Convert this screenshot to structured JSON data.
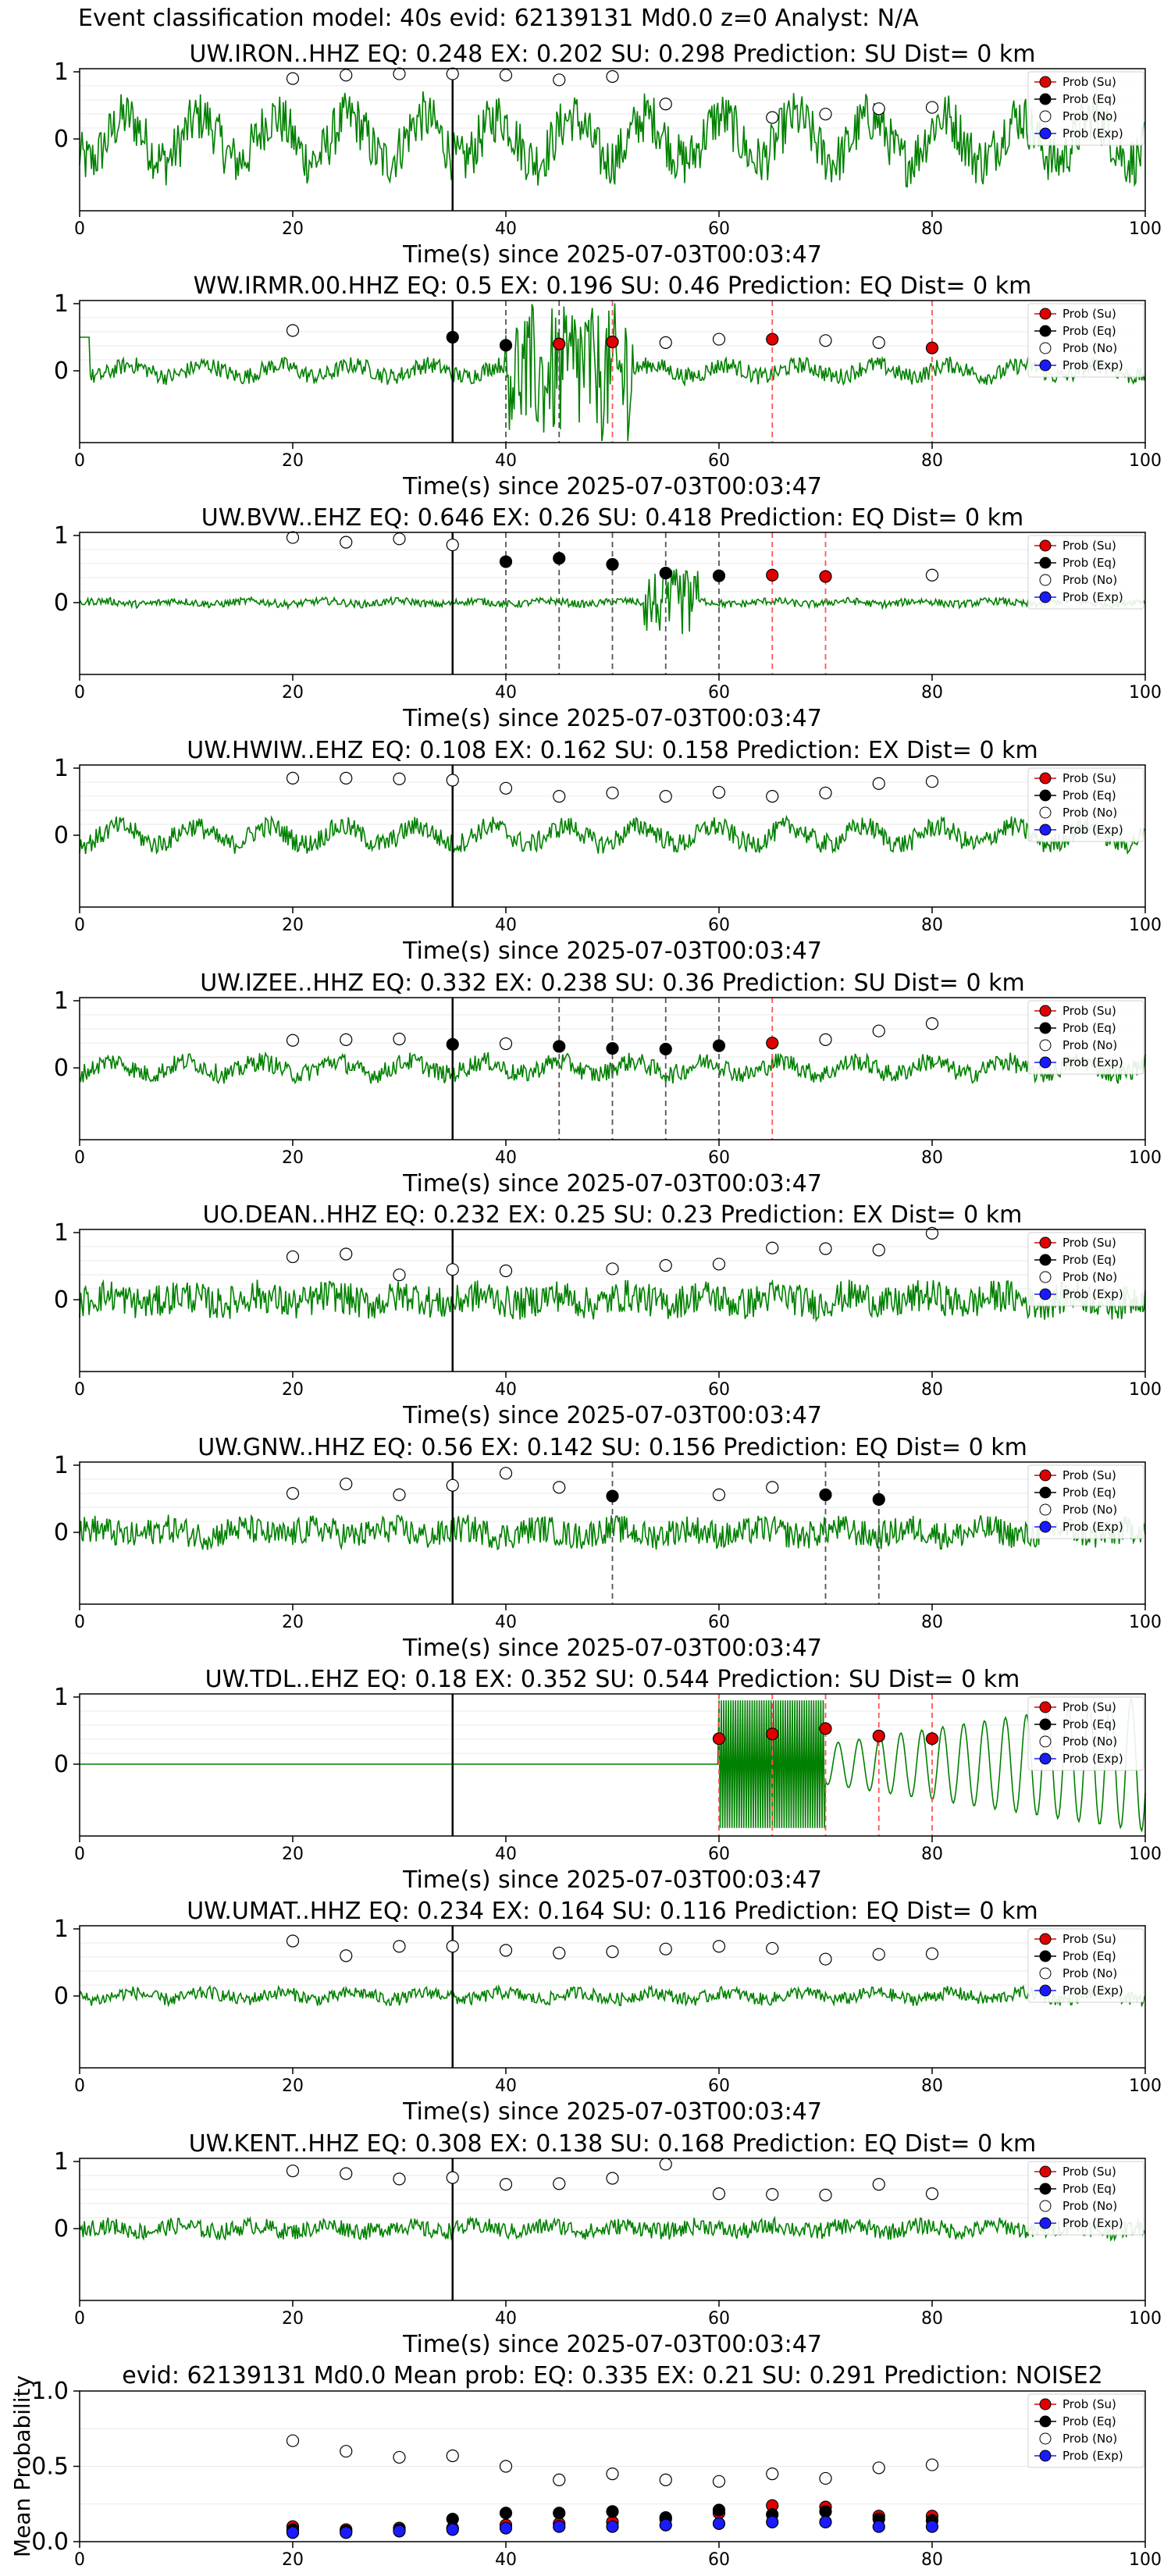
{
  "figure": {
    "title": "Event classification model: 40s evid: 62139131 Md0.0 z=0 Analyst: N/A",
    "legend_labels": [
      "Prob (Su)",
      "Prob (Eq)",
      "Prob (No)",
      "Prob (Exp)"
    ],
    "xlabel_station": "Time(s) since 2025-07-03T00:03:47",
    "colors": {
      "su": "#e00000",
      "eq": "#000000",
      "no": "#ffffff",
      "exp": "#1a1aff",
      "trace": "#008000"
    }
  },
  "chart_data": [
    {
      "type": "line",
      "title": "UW.IRON..HHZ   EQ: 0.248  EX: 0.202  SU: 0.298   Prediction: SU    Dist= 0 km",
      "xlim": [
        0,
        100
      ],
      "xticks": [
        0,
        20,
        40,
        60,
        80,
        100
      ],
      "yticks": [
        0,
        1
      ],
      "vline": 35,
      "eq_lines": [],
      "su_lines": [],
      "su_pts": [],
      "eq_pts": [],
      "no_pts": [
        [
          20,
          0.9
        ],
        [
          25,
          0.95
        ],
        [
          30,
          0.97
        ],
        [
          35,
          0.97
        ],
        [
          40,
          0.95
        ],
        [
          45,
          0.88
        ],
        [
          50,
          0.93
        ],
        [
          55,
          0.52
        ],
        [
          65,
          0.32
        ],
        [
          70,
          0.37
        ],
        [
          75,
          0.45
        ],
        [
          80,
          0.47
        ]
      ]
    },
    {
      "type": "line",
      "title": "WW.IRMR.00.HHZ   EQ: 0.5  EX: 0.196  SU: 0.46   Prediction: EQ    Dist= 0 km",
      "xlim": [
        0,
        100
      ],
      "xticks": [
        0,
        20,
        40,
        60,
        80,
        100
      ],
      "yticks": [
        0,
        1
      ],
      "vline": 35,
      "eq_lines": [
        40,
        45
      ],
      "su_lines": [
        50,
        65,
        80
      ],
      "su_pts": [
        [
          45,
          0.4
        ],
        [
          50,
          0.43
        ],
        [
          65,
          0.47
        ],
        [
          80,
          0.34
        ]
      ],
      "eq_pts": [
        [
          35,
          0.5
        ],
        [
          40,
          0.38
        ]
      ],
      "no_pts": [
        [
          20,
          0.6
        ],
        [
          55,
          0.42
        ],
        [
          60,
          0.47
        ],
        [
          70,
          0.45
        ],
        [
          75,
          0.42
        ]
      ]
    },
    {
      "type": "line",
      "title": "UW.BVW..EHZ   EQ: 0.646  EX: 0.26  SU: 0.418   Prediction: EQ    Dist= 0 km",
      "xlim": [
        0,
        100
      ],
      "xticks": [
        0,
        20,
        40,
        60,
        80,
        100
      ],
      "yticks": [
        0,
        1
      ],
      "vline": 35,
      "eq_lines": [
        40,
        45,
        50,
        55,
        60
      ],
      "su_lines": [
        65,
        70
      ],
      "su_pts": [
        [
          65,
          0.41
        ],
        [
          70,
          0.39
        ]
      ],
      "eq_pts": [
        [
          40,
          0.61
        ],
        [
          45,
          0.66
        ],
        [
          50,
          0.57
        ],
        [
          55,
          0.44
        ],
        [
          60,
          0.4
        ]
      ],
      "no_pts": [
        [
          20,
          0.97
        ],
        [
          25,
          0.9
        ],
        [
          30,
          0.95
        ],
        [
          35,
          0.86
        ],
        [
          80,
          0.41
        ]
      ]
    },
    {
      "type": "line",
      "title": "UW.HWIW..EHZ   EQ: 0.108  EX: 0.162  SU: 0.158   Prediction: EX    Dist= 0 km",
      "xlim": [
        0,
        100
      ],
      "xticks": [
        0,
        20,
        40,
        60,
        80,
        100
      ],
      "yticks": [
        0,
        1
      ],
      "vline": 35,
      "eq_lines": [],
      "su_lines": [],
      "su_pts": [],
      "eq_pts": [],
      "no_pts": [
        [
          20,
          0.85
        ],
        [
          25,
          0.85
        ],
        [
          30,
          0.84
        ],
        [
          35,
          0.82
        ],
        [
          40,
          0.7
        ],
        [
          45,
          0.58
        ],
        [
          50,
          0.63
        ],
        [
          55,
          0.58
        ],
        [
          60,
          0.64
        ],
        [
          65,
          0.58
        ],
        [
          70,
          0.63
        ],
        [
          75,
          0.77
        ],
        [
          80,
          0.8
        ]
      ]
    },
    {
      "type": "line",
      "title": "UW.IZEE..HHZ   EQ: 0.332  EX: 0.238  SU: 0.36   Prediction: SU    Dist= 0 km",
      "xlim": [
        0,
        100
      ],
      "xticks": [
        0,
        20,
        40,
        60,
        80,
        100
      ],
      "yticks": [
        0,
        1
      ],
      "vline": 35,
      "eq_lines": [
        45,
        50,
        55,
        60
      ],
      "su_lines": [
        65
      ],
      "su_pts": [
        [
          65,
          0.37
        ]
      ],
      "eq_pts": [
        [
          35,
          0.35
        ],
        [
          45,
          0.32
        ],
        [
          50,
          0.29
        ],
        [
          55,
          0.28
        ],
        [
          60,
          0.33
        ]
      ],
      "no_pts": [
        [
          20,
          0.41
        ],
        [
          25,
          0.42
        ],
        [
          30,
          0.43
        ],
        [
          40,
          0.36
        ],
        [
          70,
          0.42
        ],
        [
          75,
          0.55
        ],
        [
          80,
          0.66
        ]
      ]
    },
    {
      "type": "line",
      "title": "UO.DEAN..HHZ   EQ: 0.232  EX: 0.25  SU: 0.23   Prediction: EX    Dist= 0 km",
      "xlim": [
        0,
        100
      ],
      "xticks": [
        0,
        20,
        40,
        60,
        80,
        100
      ],
      "yticks": [
        0,
        1
      ],
      "vline": 35,
      "eq_lines": [],
      "su_lines": [],
      "su_pts": [],
      "eq_pts": [],
      "no_pts": [
        [
          20,
          0.64
        ],
        [
          25,
          0.68
        ],
        [
          30,
          0.37
        ],
        [
          35,
          0.45
        ],
        [
          40,
          0.43
        ],
        [
          50,
          0.46
        ],
        [
          55,
          0.51
        ],
        [
          60,
          0.53
        ],
        [
          65,
          0.77
        ],
        [
          70,
          0.76
        ],
        [
          75,
          0.74
        ],
        [
          80,
          0.99
        ]
      ]
    },
    {
      "type": "line",
      "title": "UW.GNW..HHZ   EQ: 0.56  EX: 0.142  SU: 0.156   Prediction: EQ    Dist= 0 km",
      "xlim": [
        0,
        100
      ],
      "xticks": [
        0,
        20,
        40,
        60,
        80,
        100
      ],
      "yticks": [
        0,
        1
      ],
      "vline": 35,
      "eq_lines": [
        50,
        70,
        75
      ],
      "su_lines": [],
      "su_pts": [],
      "eq_pts": [
        [
          50,
          0.54
        ],
        [
          70,
          0.56
        ],
        [
          75,
          0.49
        ]
      ],
      "no_pts": [
        [
          20,
          0.58
        ],
        [
          25,
          0.72
        ],
        [
          30,
          0.56
        ],
        [
          35,
          0.7
        ],
        [
          40,
          0.88
        ],
        [
          45,
          0.67
        ],
        [
          60,
          0.56
        ],
        [
          65,
          0.67
        ]
      ]
    },
    {
      "type": "line",
      "title": "UW.TDL..EHZ   EQ: 0.18  EX: 0.352  SU: 0.544   Prediction: SU    Dist= 0 km",
      "xlim": [
        0,
        100
      ],
      "xticks": [
        0,
        20,
        40,
        60,
        80,
        100
      ],
      "yticks": [
        0,
        1
      ],
      "vline": 35,
      "eq_lines": [],
      "su_lines": [
        60,
        65,
        70,
        75,
        80
      ],
      "su_pts": [
        [
          60,
          0.38
        ],
        [
          65,
          0.45
        ],
        [
          70,
          0.53
        ],
        [
          75,
          0.42
        ],
        [
          80,
          0.38
        ]
      ],
      "eq_pts": [],
      "no_pts": []
    },
    {
      "type": "line",
      "title": "UW.UMAT..HHZ   EQ: 0.234  EX: 0.164  SU: 0.116   Prediction: EQ    Dist= 0 km",
      "xlim": [
        0,
        100
      ],
      "xticks": [
        0,
        20,
        40,
        60,
        80,
        100
      ],
      "yticks": [
        0,
        1
      ],
      "vline": 35,
      "eq_lines": [],
      "su_lines": [],
      "su_pts": [],
      "eq_pts": [],
      "no_pts": [
        [
          20,
          0.82
        ],
        [
          25,
          0.6
        ],
        [
          30,
          0.74
        ],
        [
          35,
          0.74
        ],
        [
          40,
          0.68
        ],
        [
          45,
          0.64
        ],
        [
          50,
          0.66
        ],
        [
          55,
          0.7
        ],
        [
          60,
          0.74
        ],
        [
          65,
          0.71
        ],
        [
          70,
          0.55
        ],
        [
          75,
          0.62
        ],
        [
          80,
          0.63
        ]
      ]
    },
    {
      "type": "line",
      "title": "UW.KENT..HHZ   EQ: 0.308  EX: 0.138  SU: 0.168   Prediction: EQ    Dist= 0 km",
      "xlim": [
        0,
        100
      ],
      "xticks": [
        0,
        20,
        40,
        60,
        80,
        100
      ],
      "yticks": [
        0,
        1
      ],
      "vline": 35,
      "eq_lines": [],
      "su_lines": [],
      "su_pts": [],
      "eq_pts": [],
      "no_pts": [
        [
          20,
          0.86
        ],
        [
          25,
          0.82
        ],
        [
          30,
          0.74
        ],
        [
          35,
          0.76
        ],
        [
          40,
          0.66
        ],
        [
          45,
          0.67
        ],
        [
          50,
          0.75
        ],
        [
          55,
          0.96
        ],
        [
          60,
          0.52
        ],
        [
          65,
          0.51
        ],
        [
          70,
          0.5
        ],
        [
          75,
          0.66
        ],
        [
          80,
          0.52
        ]
      ]
    },
    {
      "type": "scatter",
      "title": "evid: 62139131  Md0.0   Mean prob:   EQ: 0.335  EX: 0.21  SU: 0.291   Prediction: NOISE2",
      "ylabel": "Mean Probability",
      "xlim": [
        0,
        100
      ],
      "ylim": [
        0,
        1
      ],
      "xticks": [
        0,
        20,
        40,
        60,
        80,
        100
      ],
      "yticks": [
        0,
        0.5,
        1
      ],
      "ytick_labels": [
        "0.0",
        "0.5",
        "1.0"
      ],
      "no": [
        [
          20,
          0.67
        ],
        [
          25,
          0.6
        ],
        [
          30,
          0.56
        ],
        [
          35,
          0.57
        ],
        [
          40,
          0.5
        ],
        [
          45,
          0.41
        ],
        [
          50,
          0.45
        ],
        [
          55,
          0.41
        ],
        [
          60,
          0.4
        ],
        [
          65,
          0.45
        ],
        [
          70,
          0.42
        ],
        [
          75,
          0.49
        ],
        [
          80,
          0.51
        ]
      ],
      "su": [
        [
          20,
          0.1
        ],
        [
          25,
          0.08
        ],
        [
          30,
          0.09
        ],
        [
          35,
          0.09
        ],
        [
          40,
          0.11
        ],
        [
          45,
          0.12
        ],
        [
          50,
          0.13
        ],
        [
          55,
          0.15
        ],
        [
          60,
          0.19
        ],
        [
          65,
          0.24
        ],
        [
          70,
          0.23
        ],
        [
          75,
          0.17
        ],
        [
          80,
          0.17
        ]
      ],
      "eq": [
        [
          20,
          0.08
        ],
        [
          25,
          0.07
        ],
        [
          30,
          0.08
        ],
        [
          35,
          0.15
        ],
        [
          40,
          0.19
        ],
        [
          45,
          0.19
        ],
        [
          50,
          0.2
        ],
        [
          55,
          0.16
        ],
        [
          60,
          0.21
        ],
        [
          65,
          0.18
        ],
        [
          70,
          0.2
        ],
        [
          75,
          0.15
        ],
        [
          80,
          0.14
        ]
      ],
      "exp": [
        [
          20,
          0.06
        ],
        [
          25,
          0.06
        ],
        [
          30,
          0.07
        ],
        [
          35,
          0.08
        ],
        [
          40,
          0.09
        ],
        [
          45,
          0.1
        ],
        [
          50,
          0.1
        ],
        [
          55,
          0.11
        ],
        [
          60,
          0.12
        ],
        [
          65,
          0.13
        ],
        [
          70,
          0.13
        ],
        [
          75,
          0.1
        ],
        [
          80,
          0.1
        ]
      ]
    }
  ]
}
